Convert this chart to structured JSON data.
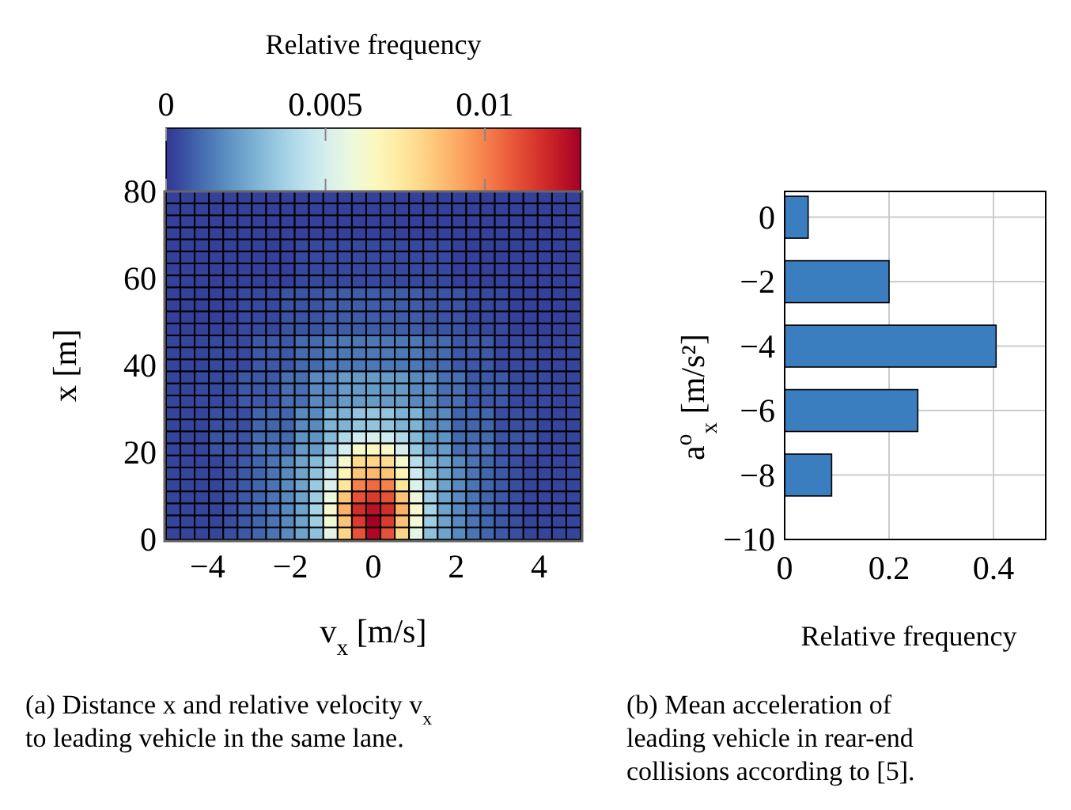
{
  "chart_data": [
    {
      "type": "heatmap",
      "xlabel": "v$_{x}$ [m/s]",
      "ylabel": "x [m]",
      "clabel": "Relative frequency",
      "xlim": [
        -5,
        5
      ],
      "xticks": [
        {
          "value": -4,
          "label": "−4"
        },
        {
          "value": -2,
          "label": "−2"
        },
        0,
        2,
        4
      ],
      "ylim": [
        0,
        80
      ],
      "yticks": [
        0,
        20,
        40,
        60,
        80
      ],
      "clim": [
        0,
        0.013
      ],
      "cticks": [
        0,
        0.005,
        0.01
      ],
      "cells": [
        [
          0.0002,
          0.0002,
          0.0002,
          0.0002,
          0.0002,
          0.0002,
          0.0002,
          0.0002,
          0.0002,
          0.0002,
          0.0002,
          0.0002,
          0.0002,
          0.0002,
          0.0002,
          0.0002,
          0.0002,
          0.0002,
          0.0002,
          0.0002,
          0.0002,
          0.0002,
          0.0002,
          0.0002,
          0.0002,
          0.0002,
          0.0002,
          0.0002,
          0.0002
        ],
        [
          0.0002,
          0.0002,
          0.0002,
          0.0002,
          0.0002,
          0.0002,
          0.0002,
          0.0002,
          0.0002,
          0.0002,
          0.0002,
          0.0002,
          0.0002,
          0.0002,
          0.0002,
          0.0002,
          0.0002,
          0.0002,
          0.0002,
          0.0002,
          0.0002,
          0.0002,
          0.0002,
          0.0002,
          0.0002,
          0.0002,
          0.0002,
          0.0002,
          0.0002
        ],
        [
          0.0002,
          0.0002,
          0.0002,
          0.0002,
          0.0002,
          0.0002,
          0.0002,
          0.0002,
          0.0002,
          0.0002,
          0.0002,
          0.0002,
          0.0002,
          0.0002,
          0.0002,
          0.0002,
          0.0002,
          0.0002,
          0.0002,
          0.0002,
          0.0002,
          0.0002,
          0.0002,
          0.0002,
          0.0002,
          0.0002,
          0.0002,
          0.0002,
          0.0002
        ],
        [
          0.0002,
          0.0002,
          0.0002,
          0.0002,
          0.0002,
          0.0002,
          0.0002,
          0.0002,
          0.0002,
          0.0002,
          0.0002,
          0.0002,
          0.0002,
          0.0002,
          0.0002,
          0.0002,
          0.0002,
          0.0002,
          0.0002,
          0.0002,
          0.0002,
          0.0002,
          0.0002,
          0.0002,
          0.0002,
          0.0002,
          0.0002,
          0.0002,
          0.0002
        ],
        [
          0.0002,
          0.0002,
          0.0002,
          0.0002,
          0.0002,
          0.0002,
          0.0002,
          0.0002,
          0.0002,
          0.0004,
          0.0004,
          0.0004,
          0.0004,
          0.0004,
          0.0004,
          0.0004,
          0.0004,
          0.0004,
          0.0004,
          0.0004,
          0.0002,
          0.0002,
          0.0002,
          0.0002,
          0.0002,
          0.0002,
          0.0002,
          0.0002,
          0.0002
        ],
        [
          0.0002,
          0.0002,
          0.0002,
          0.0002,
          0.0002,
          0.0002,
          0.0002,
          0.0002,
          0.0002,
          0.0004,
          0.0004,
          0.0004,
          0.0004,
          0.0004,
          0.0004,
          0.0004,
          0.0004,
          0.0004,
          0.0004,
          0.0004,
          0.0002,
          0.0002,
          0.0002,
          0.0002,
          0.0002,
          0.0002,
          0.0002,
          0.0002,
          0.0002
        ],
        [
          0.0002,
          0.0002,
          0.0002,
          0.0002,
          0.0002,
          0.0002,
          0.0002,
          0.0002,
          0.0002,
          0.0004,
          0.0004,
          0.0004,
          0.0004,
          0.0004,
          0.0004,
          0.0004,
          0.0004,
          0.0004,
          0.0004,
          0.0004,
          0.0002,
          0.0002,
          0.0002,
          0.0002,
          0.0002,
          0.0002,
          0.0002,
          0.0002,
          0.0002
        ],
        [
          0.0002,
          0.0002,
          0.0002,
          0.0002,
          0.0002,
          0.0002,
          0.0002,
          0.0002,
          0.0002,
          0.0004,
          0.0004,
          0.0004,
          0.0004,
          0.0004,
          0.0004,
          0.0004,
          0.0004,
          0.0004,
          0.0004,
          0.0004,
          0.0002,
          0.0002,
          0.0002,
          0.0002,
          0.0002,
          0.0002,
          0.0002,
          0.0002,
          0.0002
        ],
        [
          0.0002,
          0.0002,
          0.0002,
          0.0002,
          0.0002,
          0.0004,
          0.0004,
          0.0004,
          0.0006,
          0.0006,
          0.0006,
          0.0008,
          0.0008,
          0.0008,
          0.0008,
          0.0008,
          0.0008,
          0.0008,
          0.0006,
          0.0006,
          0.0006,
          0.0004,
          0.0004,
          0.0004,
          0.0002,
          0.0002,
          0.0002,
          0.0002,
          0.0002
        ],
        [
          0.0002,
          0.0002,
          0.0002,
          0.0002,
          0.0002,
          0.0004,
          0.0004,
          0.0004,
          0.0006,
          0.0006,
          0.0006,
          0.0008,
          0.0008,
          0.0008,
          0.0008,
          0.0008,
          0.0008,
          0.0008,
          0.0006,
          0.0006,
          0.0006,
          0.0004,
          0.0004,
          0.0004,
          0.0002,
          0.0002,
          0.0002,
          0.0002,
          0.0002
        ],
        [
          0.0002,
          0.0002,
          0.0002,
          0.0002,
          0.0002,
          0.0004,
          0.0004,
          0.0004,
          0.0006,
          0.0006,
          0.0006,
          0.0008,
          0.0008,
          0.0008,
          0.0008,
          0.0008,
          0.0008,
          0.0008,
          0.0006,
          0.0006,
          0.0006,
          0.0004,
          0.0004,
          0.0004,
          0.0002,
          0.0002,
          0.0002,
          0.0002,
          0.0002
        ],
        [
          0.0002,
          0.0002,
          0.0002,
          0.0002,
          0.0002,
          0.0004,
          0.0004,
          0.0004,
          0.0006,
          0.0006,
          0.0006,
          0.0008,
          0.0008,
          0.0008,
          0.0008,
          0.0008,
          0.0008,
          0.0008,
          0.0006,
          0.0006,
          0.0006,
          0.0004,
          0.0004,
          0.0004,
          0.0002,
          0.0002,
          0.0002,
          0.0002,
          0.0002
        ],
        [
          0.0003,
          0.0003,
          0.0003,
          0.0004,
          0.0004,
          0.0004,
          0.0007,
          0.0007,
          0.0007,
          0.0011,
          0.0011,
          0.0014,
          0.0014,
          0.0014,
          0.0014,
          0.0014,
          0.0014,
          0.0014,
          0.0011,
          0.0011,
          0.0007,
          0.0007,
          0.0007,
          0.0004,
          0.0004,
          0.0004,
          0.0003,
          0.0003,
          0.0003
        ],
        [
          0.0003,
          0.0003,
          0.0003,
          0.0004,
          0.0004,
          0.0004,
          0.0007,
          0.0007,
          0.0007,
          0.0011,
          0.0011,
          0.0014,
          0.0014,
          0.0014,
          0.0014,
          0.0014,
          0.0014,
          0.0014,
          0.0011,
          0.0011,
          0.0007,
          0.0007,
          0.0007,
          0.0004,
          0.0004,
          0.0004,
          0.0003,
          0.0003,
          0.0003
        ],
        [
          0.0003,
          0.0003,
          0.0003,
          0.0004,
          0.0004,
          0.0004,
          0.0007,
          0.0007,
          0.0007,
          0.0011,
          0.0011,
          0.0014,
          0.0014,
          0.0014,
          0.0014,
          0.0014,
          0.0014,
          0.0014,
          0.0011,
          0.0011,
          0.0007,
          0.0007,
          0.0007,
          0.0004,
          0.0004,
          0.0004,
          0.0003,
          0.0003,
          0.0003
        ],
        [
          0.0003,
          0.0003,
          0.0004,
          0.0004,
          0.0004,
          0.0007,
          0.0007,
          0.0007,
          0.0012,
          0.0012,
          0.0018,
          0.0018,
          0.0022,
          0.0022,
          0.0022,
          0.0022,
          0.0022,
          0.0018,
          0.0018,
          0.0012,
          0.0012,
          0.0007,
          0.0007,
          0.0007,
          0.0004,
          0.0004,
          0.0004,
          0.0003,
          0.0003
        ],
        [
          0.0003,
          0.0003,
          0.0004,
          0.0004,
          0.0004,
          0.0007,
          0.0007,
          0.0007,
          0.0012,
          0.0012,
          0.0018,
          0.0018,
          0.0022,
          0.0022,
          0.0022,
          0.0022,
          0.0022,
          0.0018,
          0.0018,
          0.0012,
          0.0012,
          0.0007,
          0.0007,
          0.0007,
          0.0004,
          0.0004,
          0.0004,
          0.0003,
          0.0003
        ],
        [
          0.0003,
          0.0003,
          0.0004,
          0.0004,
          0.0004,
          0.0007,
          0.0007,
          0.0007,
          0.0012,
          0.0012,
          0.0018,
          0.0018,
          0.0022,
          0.0022,
          0.0022,
          0.0022,
          0.0022,
          0.0018,
          0.0018,
          0.0012,
          0.0012,
          0.0007,
          0.0007,
          0.0007,
          0.0004,
          0.0004,
          0.0004,
          0.0003,
          0.0003
        ],
        [
          0.0003,
          0.0003,
          0.0003,
          0.0005,
          0.0005,
          0.0005,
          0.001,
          0.001,
          0.001,
          0.0018,
          0.0018,
          0.0028,
          0.0028,
          0.0033,
          0.0033,
          0.0033,
          0.0028,
          0.0028,
          0.0018,
          0.0018,
          0.001,
          0.001,
          0.001,
          0.0005,
          0.0005,
          0.0005,
          0.0003,
          0.0003,
          0.0003
        ],
        [
          0.0003,
          0.0003,
          0.0003,
          0.0005,
          0.0005,
          0.0005,
          0.001,
          0.001,
          0.001,
          0.0018,
          0.0018,
          0.0028,
          0.0028,
          0.0033,
          0.0033,
          0.0033,
          0.0028,
          0.0028,
          0.0018,
          0.0018,
          0.001,
          0.001,
          0.001,
          0.0005,
          0.0005,
          0.0005,
          0.0003,
          0.0003,
          0.0003
        ],
        [
          0.0003,
          0.0003,
          0.0003,
          0.0006,
          0.0006,
          0.0006,
          0.0011,
          0.0011,
          0.0011,
          0.002,
          0.002,
          0.003,
          0.004,
          0.0048,
          0.005,
          0.0048,
          0.004,
          0.003,
          0.002,
          0.002,
          0.0011,
          0.0011,
          0.0011,
          0.0006,
          0.0006,
          0.0006,
          0.0003,
          0.0003,
          0.0003
        ],
        [
          0.0003,
          0.0003,
          0.0003,
          0.0006,
          0.0006,
          0.0006,
          0.0012,
          0.0012,
          0.0012,
          0.0022,
          0.0022,
          0.0035,
          0.005,
          0.0063,
          0.0065,
          0.0063,
          0.005,
          0.0035,
          0.0022,
          0.0022,
          0.0012,
          0.0012,
          0.0012,
          0.0006,
          0.0006,
          0.0006,
          0.0003,
          0.0003,
          0.0003
        ],
        [
          0.0003,
          0.0003,
          0.0003,
          0.0003,
          0.0005,
          0.0007,
          0.001,
          0.0013,
          0.0018,
          0.0024,
          0.003,
          0.0042,
          0.0062,
          0.0078,
          0.008,
          0.0078,
          0.0062,
          0.0042,
          0.003,
          0.0024,
          0.0018,
          0.0013,
          0.001,
          0.0007,
          0.0005,
          0.0003,
          0.0003,
          0.0003,
          0.0003
        ],
        [
          0.0003,
          0.0003,
          0.0003,
          0.0003,
          0.0005,
          0.0007,
          0.001,
          0.0013,
          0.0018,
          0.0024,
          0.0032,
          0.0048,
          0.0068,
          0.0085,
          0.0088,
          0.0085,
          0.0068,
          0.0048,
          0.0032,
          0.0024,
          0.0018,
          0.0013,
          0.001,
          0.0007,
          0.0005,
          0.0003,
          0.0003,
          0.0003,
          0.0003
        ],
        [
          0.0003,
          0.0003,
          0.0003,
          0.0003,
          0.0005,
          0.0007,
          0.001,
          0.0013,
          0.0018,
          0.0024,
          0.0035,
          0.0052,
          0.0075,
          0.01,
          0.0105,
          0.01,
          0.0075,
          0.0052,
          0.0035,
          0.0024,
          0.0018,
          0.0013,
          0.001,
          0.0007,
          0.0005,
          0.0003,
          0.0003,
          0.0003,
          0.0003
        ],
        [
          0.0003,
          0.0003,
          0.0003,
          0.0003,
          0.0005,
          0.0007,
          0.001,
          0.0013,
          0.0018,
          0.0024,
          0.0036,
          0.0058,
          0.0085,
          0.011,
          0.0115,
          0.011,
          0.0085,
          0.0058,
          0.0036,
          0.0024,
          0.0018,
          0.0013,
          0.001,
          0.0007,
          0.0005,
          0.0003,
          0.0003,
          0.0003,
          0.0003
        ],
        [
          0.0003,
          0.0003,
          0.0003,
          0.0003,
          0.0005,
          0.0007,
          0.001,
          0.0013,
          0.0018,
          0.0024,
          0.0038,
          0.0062,
          0.009,
          0.0118,
          0.0125,
          0.0118,
          0.009,
          0.0062,
          0.0038,
          0.0024,
          0.0018,
          0.0013,
          0.001,
          0.0007,
          0.0005,
          0.0003,
          0.0003,
          0.0003,
          0.0003
        ],
        [
          0.0003,
          0.0003,
          0.0003,
          0.0003,
          0.0005,
          0.0007,
          0.001,
          0.0013,
          0.0018,
          0.0024,
          0.0036,
          0.006,
          0.0085,
          0.0115,
          0.013,
          0.0115,
          0.0085,
          0.006,
          0.0036,
          0.0024,
          0.0018,
          0.0013,
          0.001,
          0.0007,
          0.0005,
          0.0003,
          0.0003,
          0.0003,
          0.0003
        ],
        [
          0.0003,
          0.0003,
          0.0003,
          0.0003,
          0.0005,
          0.0007,
          0.001,
          0.0013,
          0.0018,
          0.0024,
          0.0032,
          0.0055,
          0.008,
          0.011,
          0.0128,
          0.011,
          0.008,
          0.0055,
          0.0032,
          0.0024,
          0.0018,
          0.0013,
          0.001,
          0.0007,
          0.0005,
          0.0003,
          0.0003,
          0.0003,
          0.0003
        ]
      ],
      "annotations": [
        "(a) Distance x and relative velocity v$_{x}$ to leading vehicle in the same lane."
      ]
    },
    {
      "type": "bar",
      "orientation": "horizontal",
      "xlabel": "Relative frequency",
      "ylabel": "a$^{o}$$_{x}$ [m/s²]",
      "x": [
        0,
        -2,
        -4,
        -6,
        -8
      ],
      "values": [
        0.045,
        0.2,
        0.405,
        0.255,
        0.09
      ],
      "color": "#3a7ebf",
      "xlim": [
        0,
        0.5
      ],
      "xticks": [
        0,
        0.2,
        0.4
      ],
      "ylim": [
        -10,
        0.8
      ],
      "yticks": [
        0,
        {
          "value": -2,
          "label": "−2"
        },
        {
          "value": -4,
          "label": "−4"
        },
        {
          "value": -6,
          "label": "−6"
        },
        {
          "value": -8,
          "label": "−8"
        },
        {
          "value": -10,
          "label": "−10"
        }
      ],
      "grid": true,
      "annotations": [
        "(b) Mean acceleration of leading vehicle in rear-end collisions according to [5]."
      ]
    }
  ]
}
